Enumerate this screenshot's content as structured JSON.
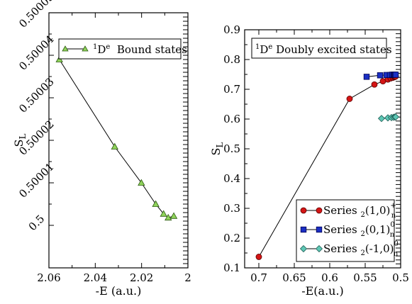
{
  "chart_data": [
    {
      "type": "line",
      "panel": "left",
      "xlabel": "-E (a.u.)",
      "ylabel_main": "S",
      "ylabel_sub": "L",
      "xlim": [
        2.06,
        2.0
      ],
      "ylim": [
        49999.0,
        50005.0
      ],
      "x_ticks": [
        2.06,
        2.04,
        2.02,
        2.0
      ],
      "x_tick_labels": [
        "2.06",
        "2.04",
        "2.02",
        "2"
      ],
      "y_ticks": [
        50000.0,
        50001.0,
        50002.0,
        50003.0,
        50004.0,
        50005.0
      ],
      "y_tick_labels": [
        "0.5",
        "0.50001",
        "0.50002",
        "0.50003",
        "0.50004",
        "0.50005"
      ],
      "grid": false,
      "legend_position": "top-center",
      "series": [
        {
          "name_sup": "1",
          "name_main": "D",
          "name_sup2": "e",
          "name_rest": "  Bound states",
          "color": "#8fd35a",
          "marker": "triangle",
          "x": [
            2.0555,
            2.0316,
            2.0201,
            2.0139,
            2.0105,
            2.0085,
            2.0061
          ],
          "y": [
            50003.9,
            50001.85,
            50001.0,
            50000.5,
            50000.27,
            50000.18,
            50000.22
          ]
        }
      ]
    },
    {
      "type": "line",
      "panel": "right",
      "xlabel": "-E(a.u.)",
      "ylabel_main": "S",
      "ylabel_sub": "L",
      "xlim": [
        0.72,
        0.5
      ],
      "ylim": [
        0.1,
        0.9
      ],
      "x_ticks": [
        0.7,
        0.65,
        0.6,
        0.55,
        0.5
      ],
      "x_tick_labels": [
        "0.7",
        "0.65",
        "0.6",
        "0.55",
        "0.5"
      ],
      "y_ticks": [
        0.1,
        0.2,
        0.3,
        0.4,
        0.5,
        0.6,
        0.7,
        0.8,
        0.9
      ],
      "y_tick_labels": [
        "0.1",
        "0.2",
        "0.3",
        "0.4",
        "0.5",
        "0.6",
        "0.7",
        "0.8",
        "0.9"
      ],
      "grid": false,
      "title_box": {
        "sup": "1",
        "main": "D",
        "sup2": "e",
        "rest": " Doubly excited states",
        "position": "top-center"
      },
      "legend_position": "bottom-right",
      "series": [
        {
          "label_prefix": "Series ",
          "label_sub": "2",
          "label_core": "(1,0)",
          "label_sup": "+",
          "label_sub2": "n",
          "color": "#d41515",
          "marker": "circle",
          "x": [
            0.7,
            0.572,
            0.537,
            0.525,
            0.518,
            0.514,
            0.511,
            0.509,
            0.508,
            0.507
          ],
          "y": [
            0.137,
            0.668,
            0.716,
            0.727,
            0.733,
            0.737,
            0.739,
            0.741,
            0.742,
            0.743
          ]
        },
        {
          "label_prefix": "Series ",
          "label_sub": "2",
          "label_core": "(0,1)",
          "label_sup": "0",
          "label_sub2": "n",
          "color": "#1a2fc4",
          "marker": "square",
          "x": [
            0.548,
            0.529,
            0.52,
            0.515,
            0.512,
            0.51,
            0.509,
            0.508,
            0.507
          ],
          "y": [
            0.742,
            0.747,
            0.748,
            0.748,
            0.749,
            0.749,
            0.749,
            0.749,
            0.749
          ]
        },
        {
          "label_prefix": "Series ",
          "label_sub": "2",
          "label_core": "(-1,0)",
          "label_sup": "0",
          "label_sub2": "n",
          "color": "#5ec7b5",
          "marker": "diamond",
          "x": [
            0.527,
            0.518,
            0.513,
            0.51,
            0.508,
            0.507
          ],
          "y": [
            0.602,
            0.604,
            0.605,
            0.606,
            0.607,
            0.607
          ]
        }
      ]
    }
  ]
}
